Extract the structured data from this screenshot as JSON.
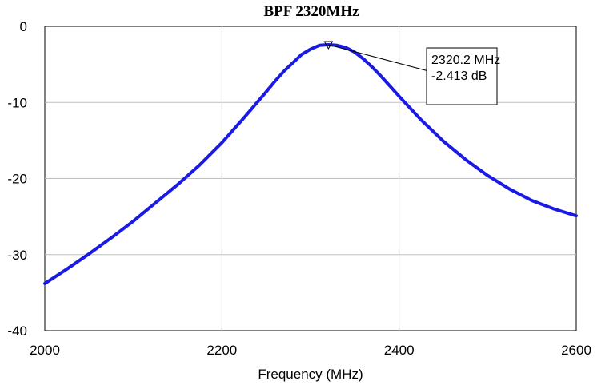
{
  "chart_data": {
    "type": "line",
    "title": "BPF 2320MHz",
    "xlabel": "Frequency (MHz)",
    "ylabel": "",
    "xlim": [
      2000,
      2600
    ],
    "ylim": [
      -40,
      0
    ],
    "x_ticks": [
      "2000",
      "2200",
      "2400",
      "2600"
    ],
    "y_ticks": [
      "0",
      "-10",
      "-20",
      "-30",
      "-40"
    ],
    "x_tick_values": [
      2000,
      2200,
      2400,
      2600
    ],
    "y_tick_values": [
      0,
      -10,
      -20,
      -30,
      -40
    ],
    "grid": true,
    "line_color": "#1a1ae6",
    "series": [
      {
        "x": [
          2000,
          2025,
          2050,
          2075,
          2100,
          2125,
          2150,
          2175,
          2200,
          2225,
          2250,
          2260,
          2270,
          2280,
          2290,
          2300,
          2310,
          2320,
          2330,
          2340,
          2350,
          2360,
          2370,
          2380,
          2390,
          2400,
          2425,
          2450,
          2475,
          2500,
          2525,
          2550,
          2575,
          2600
        ],
        "values": [
          -33.8,
          -31.9,
          -29.9,
          -27.8,
          -25.6,
          -23.2,
          -20.8,
          -18.2,
          -15.3,
          -12.0,
          -8.6,
          -7.2,
          -5.9,
          -4.8,
          -3.7,
          -3.0,
          -2.5,
          -2.41,
          -2.5,
          -2.8,
          -3.4,
          -4.3,
          -5.4,
          -6.6,
          -7.9,
          -9.2,
          -12.3,
          -15.1,
          -17.5,
          -19.6,
          -21.4,
          -22.9,
          -24.0,
          -24.9
        ]
      }
    ],
    "marker": {
      "x": 2320.2,
      "y": -2.413,
      "label_lines": [
        "2320.2 MHz",
        "-2.413 dB"
      ]
    }
  }
}
